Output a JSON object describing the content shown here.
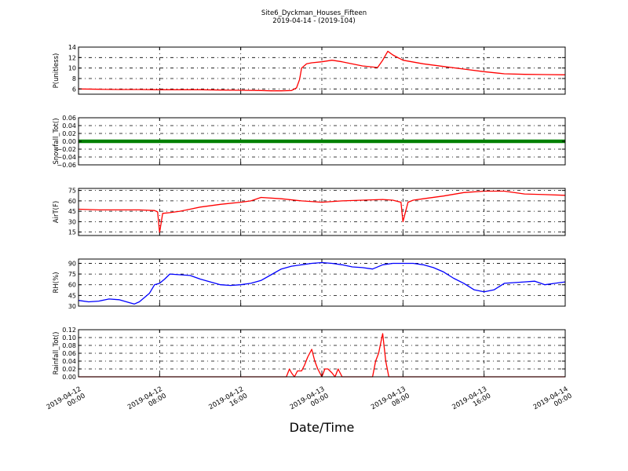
{
  "figure": {
    "title": "Site6_Dyckman_Houses_Fifteen",
    "subtitle": "2019-04-14 - (2019-104)",
    "xlabel": "Date/Time"
  },
  "chart_data": [
    {
      "type": "line",
      "ylabel": "P(unitless)",
      "ylim": [
        5,
        14
      ],
      "yticks": [
        "6",
        "8",
        "10",
        "12",
        "14"
      ],
      "grid": true,
      "series": [
        {
          "color": "#ff0000",
          "x_hours": [
            0,
            2,
            4,
            6,
            8,
            10,
            12,
            14,
            16,
            18,
            19,
            20,
            21,
            21.5,
            21.8,
            22,
            22.5,
            23,
            24,
            25,
            26,
            28,
            29.5,
            30,
            30.5,
            31,
            32,
            34,
            36,
            38,
            40,
            42,
            44,
            46,
            48
          ],
          "values": [
            6.0,
            5.95,
            5.9,
            5.9,
            5.85,
            5.85,
            5.85,
            5.8,
            5.75,
            5.7,
            5.65,
            5.65,
            5.7,
            6.2,
            7.8,
            10.0,
            10.8,
            11.0,
            11.2,
            11.5,
            11.2,
            10.4,
            10.1,
            11.5,
            13.2,
            12.5,
            11.5,
            10.8,
            10.3,
            9.8,
            9.3,
            8.9,
            8.8,
            8.75,
            8.7
          ]
        }
      ]
    },
    {
      "type": "line",
      "ylabel": "Snowfall_Tot()",
      "ylim": [
        -0.06,
        0.06
      ],
      "yticks": [
        "−0.06",
        "−0.04",
        "−0.02",
        "0.00",
        "0.02",
        "0.04",
        "0.06"
      ],
      "grid": true,
      "series": [
        {
          "color": "#008000",
          "x_hours": [
            0,
            48
          ],
          "values": [
            0.0,
            0.0
          ]
        }
      ]
    },
    {
      "type": "line",
      "ylabel": "AirT(F)",
      "ylim": [
        10,
        78
      ],
      "yticks": [
        "15",
        "30",
        "45",
        "60",
        "75"
      ],
      "grid": true,
      "series": [
        {
          "color": "#ff0000",
          "x_hours": [
            0,
            2,
            4,
            6,
            7.5,
            7.8,
            8.0,
            8.3,
            9,
            10,
            11,
            12,
            14,
            16,
            17,
            18,
            20,
            22,
            24,
            26,
            28,
            30,
            31,
            31.8,
            32,
            32.5,
            33,
            34,
            36,
            38,
            40,
            42,
            44,
            46,
            48
          ],
          "values": [
            48,
            47,
            47,
            47,
            46,
            44,
            14,
            42,
            43,
            45,
            48,
            51,
            55,
            58,
            60,
            65,
            63,
            60,
            58,
            60,
            61,
            62,
            61,
            58,
            30,
            58,
            61,
            63,
            67,
            72,
            74,
            74,
            70,
            69,
            68
          ]
        }
      ]
    },
    {
      "type": "line",
      "ylabel": "RH(%)",
      "ylim": [
        30,
        96
      ],
      "yticks": [
        "30",
        "45",
        "60",
        "75",
        "90"
      ],
      "grid": true,
      "series": [
        {
          "color": "#0000ff",
          "x_hours": [
            0,
            1,
            2,
            3,
            4,
            5,
            5.5,
            6,
            7,
            7.5,
            8,
            8.5,
            9,
            10,
            11,
            12,
            13,
            14,
            15,
            16,
            17,
            18,
            19,
            20,
            21,
            22,
            23,
            24,
            25,
            26,
            27,
            28,
            29,
            30,
            31,
            32,
            33,
            34,
            35,
            36,
            37,
            38,
            39,
            40,
            41,
            42,
            43,
            44,
            45,
            46,
            47,
            48
          ],
          "values": [
            38,
            36,
            37,
            40,
            39,
            35,
            33,
            36,
            48,
            60,
            62,
            68,
            75,
            74,
            73,
            68,
            64,
            60,
            59,
            60,
            62,
            66,
            74,
            82,
            86,
            88,
            90,
            91,
            90,
            88,
            85,
            84,
            82,
            88,
            90,
            90,
            90,
            88,
            84,
            78,
            69,
            62,
            53,
            50,
            53,
            62,
            63,
            64,
            65,
            60,
            62,
            64
          ]
        }
      ]
    },
    {
      "type": "line",
      "ylabel": "Rainfall_Tot()",
      "ylim": [
        0,
        0.12
      ],
      "yticks": [
        "0.00",
        "0.02",
        "0.04",
        "0.06",
        "0.08",
        "0.10",
        "0.12"
      ],
      "grid": true,
      "series": [
        {
          "color": "#ff0000",
          "x_hours": [
            0,
            20.5,
            20.8,
            21,
            21.3,
            21.6,
            22,
            22.3,
            22.6,
            23,
            23.3,
            23.6,
            24,
            24.3,
            24.6,
            25,
            25.3,
            25.6,
            26,
            28,
            29,
            29.3,
            29.6,
            30,
            30.3,
            30.6,
            31,
            48
          ],
          "values": [
            0,
            0,
            0.02,
            0.01,
            0,
            0.015,
            0.015,
            0.03,
            0.05,
            0.07,
            0.04,
            0.02,
            0.0,
            0.02,
            0.02,
            0.01,
            0.0,
            0.02,
            0.0,
            0.0,
            0.0,
            0.04,
            0.06,
            0.11,
            0.04,
            0.0,
            0.0,
            0.0
          ]
        }
      ]
    }
  ],
  "x_axis": {
    "range_hours": [
      0,
      48
    ],
    "tick_hours": [
      0,
      8,
      16,
      24,
      32,
      40,
      48
    ],
    "tick_labels": [
      [
        "2019-04-12",
        "00:00"
      ],
      [
        "2019-04-12",
        "08:00"
      ],
      [
        "2019-04-12",
        "16:00"
      ],
      [
        "2019-04-13",
        "00:00"
      ],
      [
        "2019-04-13",
        "08:00"
      ],
      [
        "2019-04-13",
        "16:00"
      ],
      [
        "2019-04-14",
        "00:00"
      ]
    ]
  }
}
